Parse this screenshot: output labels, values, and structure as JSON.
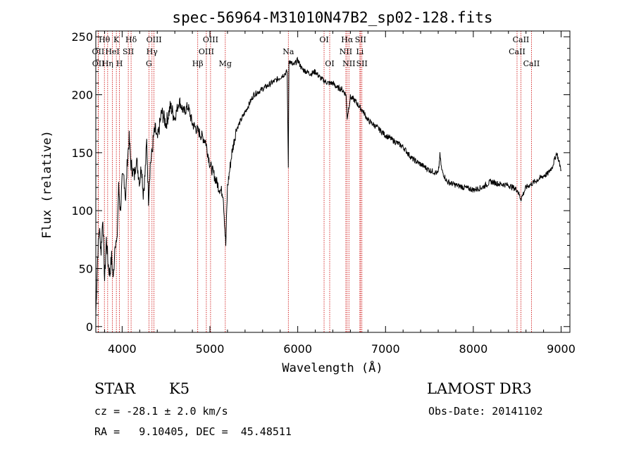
{
  "chart_data": {
    "type": "line",
    "title": "spec-56964-M31010N47B2_sp02-128.fits",
    "xlabel": "Wavelength (Å)",
    "ylabel": "Flux (relative)",
    "xlim": [
      3700,
      9100
    ],
    "ylim": [
      -5,
      255
    ],
    "xticks": [
      4000,
      5000,
      6000,
      7000,
      8000,
      9000
    ],
    "yticks": [
      0,
      50,
      100,
      150,
      200,
      250
    ],
    "grid": false,
    "series": [
      {
        "x": [
          3700,
          3720,
          3740,
          3760,
          3780,
          3800,
          3820,
          3840,
          3860,
          3880,
          3900,
          3920,
          3940,
          3960,
          3980,
          4000,
          4020,
          4040,
          4060,
          4080,
          4100,
          4120,
          4140,
          4160,
          4180,
          4200,
          4220,
          4240,
          4260,
          4280,
          4300,
          4320,
          4340,
          4360,
          4380,
          4400,
          4450,
          4500,
          4550,
          4600,
          4650,
          4700,
          4750,
          4800,
          4850,
          4900,
          4950,
          5000,
          5050,
          5100,
          5150,
          5170,
          5180,
          5200,
          5250,
          5300,
          5400,
          5500,
          5600,
          5700,
          5800,
          5850,
          5880,
          5893,
          5900,
          5950,
          6000,
          6050,
          6100,
          6150,
          6200,
          6250,
          6300,
          6350,
          6400,
          6450,
          6500,
          6550,
          6563,
          6600,
          6650,
          6700,
          6750,
          6800,
          6900,
          7000,
          7100,
          7200,
          7300,
          7400,
          7500,
          7600,
          7620,
          7640,
          7700,
          7800,
          7900,
          8000,
          8100,
          8200,
          8300,
          8400,
          8500,
          8542,
          8600,
          8700,
          8800,
          8850,
          8900,
          8950,
          9000
        ],
        "y": [
          10,
          60,
          85,
          65,
          95,
          40,
          75,
          55,
          45,
          60,
          40,
          75,
          70,
          120,
          100,
          125,
          130,
          110,
          145,
          162,
          140,
          135,
          130,
          145,
          135,
          125,
          140,
          115,
          130,
          160,
          110,
          140,
          150,
          165,
          170,
          160,
          185,
          175,
          190,
          180,
          195,
          185,
          190,
          175,
          170,
          165,
          160,
          140,
          130,
          120,
          115,
          85,
          70,
          120,
          150,
          170,
          185,
          200,
          205,
          210,
          215,
          218,
          220,
          135,
          230,
          225,
          230,
          222,
          220,
          218,
          220,
          215,
          212,
          210,
          210,
          206,
          205,
          200,
          180,
          198,
          195,
          190,
          185,
          178,
          172,
          165,
          160,
          155,
          145,
          140,
          135,
          132,
          148,
          135,
          125,
          122,
          120,
          118,
          120,
          125,
          123,
          122,
          118,
          110,
          120,
          125,
          130,
          132,
          138,
          150,
          135
        ]
      }
    ],
    "lines": [
      {
        "name": "Hθ",
        "x": 3798,
        "row": 1
      },
      {
        "name": "OII",
        "x": 3727,
        "row": 2
      },
      {
        "name": "OII",
        "x": 3729,
        "row": 3
      },
      {
        "name": "K",
        "x": 3934,
        "row": 1
      },
      {
        "name": "HeI",
        "x": 3889,
        "row": 2
      },
      {
        "name": "Hη",
        "x": 3835,
        "row": 3
      },
      {
        "name": "Hδ",
        "x": 4102,
        "row": 1
      },
      {
        "name": "SII",
        "x": 4070,
        "row": 2
      },
      {
        "name": "H",
        "x": 3969,
        "row": 3
      },
      {
        "name": "OIII",
        "x": 4363,
        "row": 1
      },
      {
        "name": "Hγ",
        "x": 4340,
        "row": 2
      },
      {
        "name": "G",
        "x": 4305,
        "row": 3
      },
      {
        "name": "OIII",
        "x": 5007,
        "row": 1
      },
      {
        "name": "OIII",
        "x": 4959,
        "row": 2
      },
      {
        "name": "Hβ",
        "x": 4861,
        "row": 3
      },
      {
        "name": "Mg",
        "x": 5175,
        "row": 3
      },
      {
        "name": "Na",
        "x": 5893,
        "row": 2
      },
      {
        "name": "OI",
        "x": 6300,
        "row": 1
      },
      {
        "name": "OI",
        "x": 6364,
        "row": 3
      },
      {
        "name": "Hα",
        "x": 6563,
        "row": 1
      },
      {
        "name": "SII",
        "x": 6716,
        "row": 1
      },
      {
        "name": "NII",
        "x": 6548,
        "row": 2
      },
      {
        "name": "Li",
        "x": 6708,
        "row": 2
      },
      {
        "name": "NII",
        "x": 6583,
        "row": 3
      },
      {
        "name": "SII",
        "x": 6731,
        "row": 3
      },
      {
        "name": "CaII",
        "x": 8542,
        "row": 1
      },
      {
        "name": "CaII",
        "x": 8498,
        "row": 2
      },
      {
        "name": "CaII",
        "x": 8662,
        "row": 3
      }
    ]
  },
  "info": {
    "object_class": "STAR",
    "subclass": "K5",
    "survey": "LAMOST DR3",
    "redshift": "cz = -28.1 ± 2.0 km/s",
    "obs_date": "Obs-Date: 20141102",
    "coords": "RA =   9.10405, DEC =  45.48511"
  },
  "colors": {
    "spectrum": "#000000",
    "line_markers": "#cc0000"
  }
}
